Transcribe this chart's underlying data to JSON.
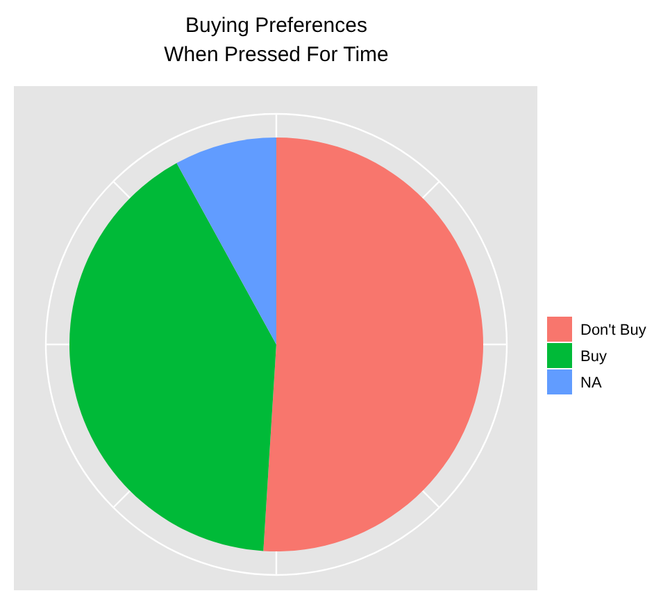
{
  "chart_data": {
    "type": "pie",
    "title": "Buying Preferences\nWhen Pressed For Time",
    "categories": [
      "Don't Buy",
      "Buy",
      "NA"
    ],
    "values": [
      51,
      41,
      8
    ],
    "colors": [
      "#f8766d",
      "#00ba38",
      "#619cff"
    ],
    "grid": true,
    "legend": "right"
  }
}
